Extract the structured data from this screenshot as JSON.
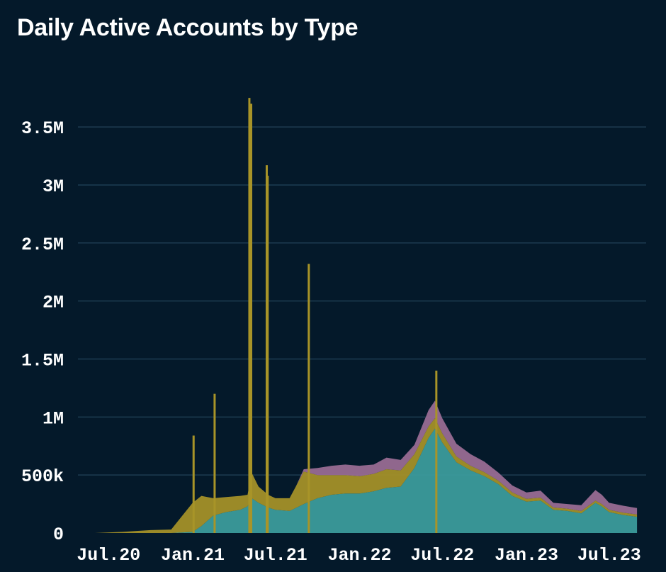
{
  "chart_data": {
    "type": "area",
    "title": "Daily Active Accounts by Type",
    "xlabel": "",
    "ylabel": "",
    "ylim": [
      0,
      3800000
    ],
    "yticks": [
      0,
      500000,
      1000000,
      1500000,
      2000000,
      2500000,
      3000000,
      3500000
    ],
    "ytick_labels": [
      "0",
      "500k",
      "1M",
      "1.5M",
      "2M",
      "2.5M",
      "3M",
      "3.5M"
    ],
    "xlim": [
      "2020-04-25",
      "2023-09-20"
    ],
    "xticks": [
      "2020-07-01",
      "2021-01-01",
      "2021-07-01",
      "2022-01-01",
      "2022-07-01",
      "2023-01-01",
      "2023-07-01"
    ],
    "xtick_labels": [
      "Jul.20",
      "Jan.21",
      "Jul.21",
      "Jan.22",
      "Jul.22",
      "Jan.23",
      "Jul.23"
    ],
    "grid": true,
    "stacked": true,
    "series_colors": [
      "#3d9e9e",
      "#a89428",
      "#9c6e96"
    ],
    "series": [
      {
        "name": "teal",
        "points": [
          [
            "2020-06-01",
            0
          ],
          [
            "2020-11-15",
            0
          ],
          [
            "2021-01-01",
            10000
          ],
          [
            "2021-01-20",
            60000
          ],
          [
            "2021-02-15",
            150000
          ],
          [
            "2021-03-15",
            180000
          ],
          [
            "2021-04-15",
            200000
          ],
          [
            "2021-05-01",
            230000
          ],
          [
            "2021-05-10",
            300000
          ],
          [
            "2021-05-25",
            260000
          ],
          [
            "2021-06-15",
            220000
          ],
          [
            "2021-07-01",
            200000
          ],
          [
            "2021-08-01",
            190000
          ],
          [
            "2021-09-01",
            250000
          ],
          [
            "2021-10-01",
            300000
          ],
          [
            "2021-11-01",
            330000
          ],
          [
            "2021-12-01",
            340000
          ],
          [
            "2022-01-01",
            340000
          ],
          [
            "2022-02-01",
            360000
          ],
          [
            "2022-03-01",
            390000
          ],
          [
            "2022-04-01",
            400000
          ],
          [
            "2022-05-01",
            560000
          ],
          [
            "2022-06-01",
            820000
          ],
          [
            "2022-06-15",
            900000
          ],
          [
            "2022-07-01",
            780000
          ],
          [
            "2022-08-01",
            610000
          ],
          [
            "2022-09-01",
            540000
          ],
          [
            "2022-10-01",
            490000
          ],
          [
            "2022-11-01",
            420000
          ],
          [
            "2022-12-01",
            320000
          ],
          [
            "2023-01-01",
            270000
          ],
          [
            "2023-02-01",
            280000
          ],
          [
            "2023-03-01",
            200000
          ],
          [
            "2023-04-01",
            190000
          ],
          [
            "2023-05-01",
            170000
          ],
          [
            "2023-06-01",
            260000
          ],
          [
            "2023-06-15",
            230000
          ],
          [
            "2023-07-01",
            180000
          ],
          [
            "2023-08-01",
            155000
          ],
          [
            "2023-08-31",
            140000
          ]
        ]
      },
      {
        "name": "gold",
        "points": [
          [
            "2020-06-01",
            0
          ],
          [
            "2020-08-01",
            10000
          ],
          [
            "2020-10-01",
            25000
          ],
          [
            "2020-11-15",
            30000
          ],
          [
            "2021-01-01",
            250000
          ],
          [
            "2021-01-20",
            260000
          ],
          [
            "2021-02-15",
            150000
          ],
          [
            "2021-03-15",
            130000
          ],
          [
            "2021-04-15",
            120000
          ],
          [
            "2021-05-01",
            100000
          ],
          [
            "2021-05-10",
            220000
          ],
          [
            "2021-05-25",
            140000
          ],
          [
            "2021-06-15",
            110000
          ],
          [
            "2021-07-01",
            100000
          ],
          [
            "2021-08-01",
            110000
          ],
          [
            "2021-09-01",
            280000
          ],
          [
            "2021-10-01",
            200000
          ],
          [
            "2021-11-01",
            170000
          ],
          [
            "2021-12-01",
            160000
          ],
          [
            "2022-01-01",
            150000
          ],
          [
            "2022-02-01",
            150000
          ],
          [
            "2022-03-01",
            160000
          ],
          [
            "2022-04-01",
            140000
          ],
          [
            "2022-05-01",
            120000
          ],
          [
            "2022-06-01",
            100000
          ],
          [
            "2022-06-15",
            90000
          ],
          [
            "2022-07-01",
            80000
          ],
          [
            "2022-08-01",
            50000
          ],
          [
            "2022-09-01",
            40000
          ],
          [
            "2022-10-01",
            35000
          ],
          [
            "2022-11-01",
            30000
          ],
          [
            "2022-12-01",
            30000
          ],
          [
            "2023-01-01",
            25000
          ],
          [
            "2023-02-01",
            25000
          ],
          [
            "2023-03-01",
            20000
          ],
          [
            "2023-04-01",
            20000
          ],
          [
            "2023-05-01",
            20000
          ],
          [
            "2023-06-01",
            20000
          ],
          [
            "2023-06-15",
            20000
          ],
          [
            "2023-07-01",
            20000
          ],
          [
            "2023-08-01",
            20000
          ],
          [
            "2023-08-31",
            20000
          ]
        ]
      },
      {
        "name": "purple",
        "points": [
          [
            "2021-08-15",
            0
          ],
          [
            "2021-09-01",
            20000
          ],
          [
            "2021-10-01",
            60000
          ],
          [
            "2021-11-01",
            80000
          ],
          [
            "2021-12-01",
            90000
          ],
          [
            "2022-01-01",
            90000
          ],
          [
            "2022-02-01",
            80000
          ],
          [
            "2022-03-01",
            100000
          ],
          [
            "2022-04-01",
            90000
          ],
          [
            "2022-05-01",
            80000
          ],
          [
            "2022-06-01",
            140000
          ],
          [
            "2022-06-15",
            150000
          ],
          [
            "2022-07-01",
            130000
          ],
          [
            "2022-08-01",
            110000
          ],
          [
            "2022-09-01",
            100000
          ],
          [
            "2022-10-01",
            90000
          ],
          [
            "2022-11-01",
            70000
          ],
          [
            "2022-12-01",
            60000
          ],
          [
            "2023-01-01",
            55000
          ],
          [
            "2023-02-01",
            60000
          ],
          [
            "2023-03-01",
            40000
          ],
          [
            "2023-04-01",
            40000
          ],
          [
            "2023-05-01",
            50000
          ],
          [
            "2023-06-01",
            90000
          ],
          [
            "2023-06-15",
            80000
          ],
          [
            "2023-07-01",
            60000
          ],
          [
            "2023-08-01",
            60000
          ],
          [
            "2023-08-31",
            55000
          ]
        ]
      }
    ],
    "spikes": [
      {
        "date": "2021-01-03",
        "value": 840000
      },
      {
        "date": "2021-02-18",
        "value": 1200000
      },
      {
        "date": "2021-05-05",
        "value": 3750000
      },
      {
        "date": "2021-05-09",
        "value": 3700000
      },
      {
        "date": "2021-06-12",
        "value": 3170000
      },
      {
        "date": "2021-06-14",
        "value": 3080000
      },
      {
        "date": "2021-09-12",
        "value": 2320000
      },
      {
        "date": "2022-06-18",
        "value": 1400000
      }
    ]
  }
}
